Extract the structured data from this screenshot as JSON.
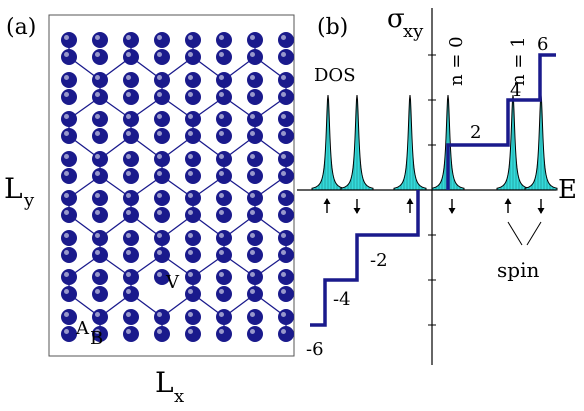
{
  "panel_a": {
    "label": "(a)",
    "x_label": "L",
    "x_label_sub": "x",
    "y_label": "L",
    "y_label_sub": "y",
    "site_labels": {
      "A": "A",
      "B": "B",
      "V": "V"
    },
    "atom_color": "#1a1a8c",
    "bond_color": "#1a1a8c"
  },
  "panel_b": {
    "label": "(b)",
    "y_axis_label": "σ",
    "y_axis_sub": "xy",
    "x_axis_label": "E",
    "dos_label": "DOS",
    "landau_labels": [
      "n = 0",
      "n = 1"
    ],
    "spin_label": "spin",
    "step_color": "#1a1a8c",
    "dos_fill": "#33dada",
    "plateaus": [
      {
        "value": -6,
        "label": "-6"
      },
      {
        "value": -4,
        "label": "-4"
      },
      {
        "value": -2,
        "label": "-2"
      },
      {
        "value": 2,
        "label": "2"
      },
      {
        "value": 4,
        "label": "4"
      },
      {
        "value": 6,
        "label": "6"
      }
    ],
    "spin_arrows": [
      "up",
      "down",
      "up",
      "down",
      "up",
      "down"
    ]
  }
}
